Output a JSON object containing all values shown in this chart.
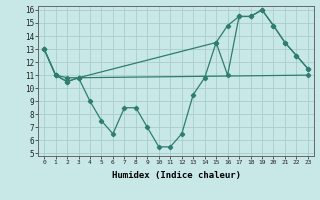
{
  "line1_x": [
    0,
    1,
    2,
    3,
    15,
    16,
    17,
    18,
    19,
    20,
    21,
    22,
    23
  ],
  "line1_y": [
    13,
    11,
    10.5,
    10.8,
    13.5,
    14.8,
    15.5,
    15.5,
    16,
    14.8,
    13.5,
    12.5,
    11.5
  ],
  "line2_x": [
    0,
    1,
    2,
    3,
    4,
    5,
    6,
    7,
    8,
    9,
    10,
    11,
    12,
    13,
    14,
    15,
    16,
    17,
    18,
    19,
    20,
    21,
    22,
    23
  ],
  "line2_y": [
    13,
    11,
    10.5,
    10.8,
    9.0,
    7.5,
    6.5,
    8.5,
    8.5,
    7.0,
    5.5,
    5.5,
    6.5,
    9.5,
    10.8,
    13.5,
    11.0,
    15.5,
    15.5,
    16.0,
    14.8,
    13.5,
    12.5,
    11.5
  ],
  "line3_x": [
    0,
    1,
    2,
    3,
    23
  ],
  "line3_y": [
    13,
    11,
    10.8,
    10.8,
    11.0
  ],
  "color": "#2e7d6e",
  "bg_color": "#c8e8e8",
  "grid_color": "#b0d0d0",
  "xlabel": "Humidex (Indice chaleur)",
  "ylim": [
    5,
    16
  ],
  "xlim": [
    -0.5,
    23.5
  ],
  "yticks": [
    5,
    6,
    7,
    8,
    9,
    10,
    11,
    12,
    13,
    14,
    15,
    16
  ],
  "xticks": [
    0,
    1,
    2,
    3,
    4,
    5,
    6,
    7,
    8,
    9,
    10,
    11,
    12,
    13,
    14,
    15,
    16,
    17,
    18,
    19,
    20,
    21,
    22,
    23
  ],
  "xtick_labels": [
    "0",
    "1",
    "2",
    "3",
    "4",
    "5",
    "6",
    "7",
    "8",
    "9",
    "10",
    "11",
    "12",
    "13",
    "14",
    "15",
    "16",
    "17",
    "18",
    "19",
    "20",
    "21",
    "22",
    "23"
  ]
}
